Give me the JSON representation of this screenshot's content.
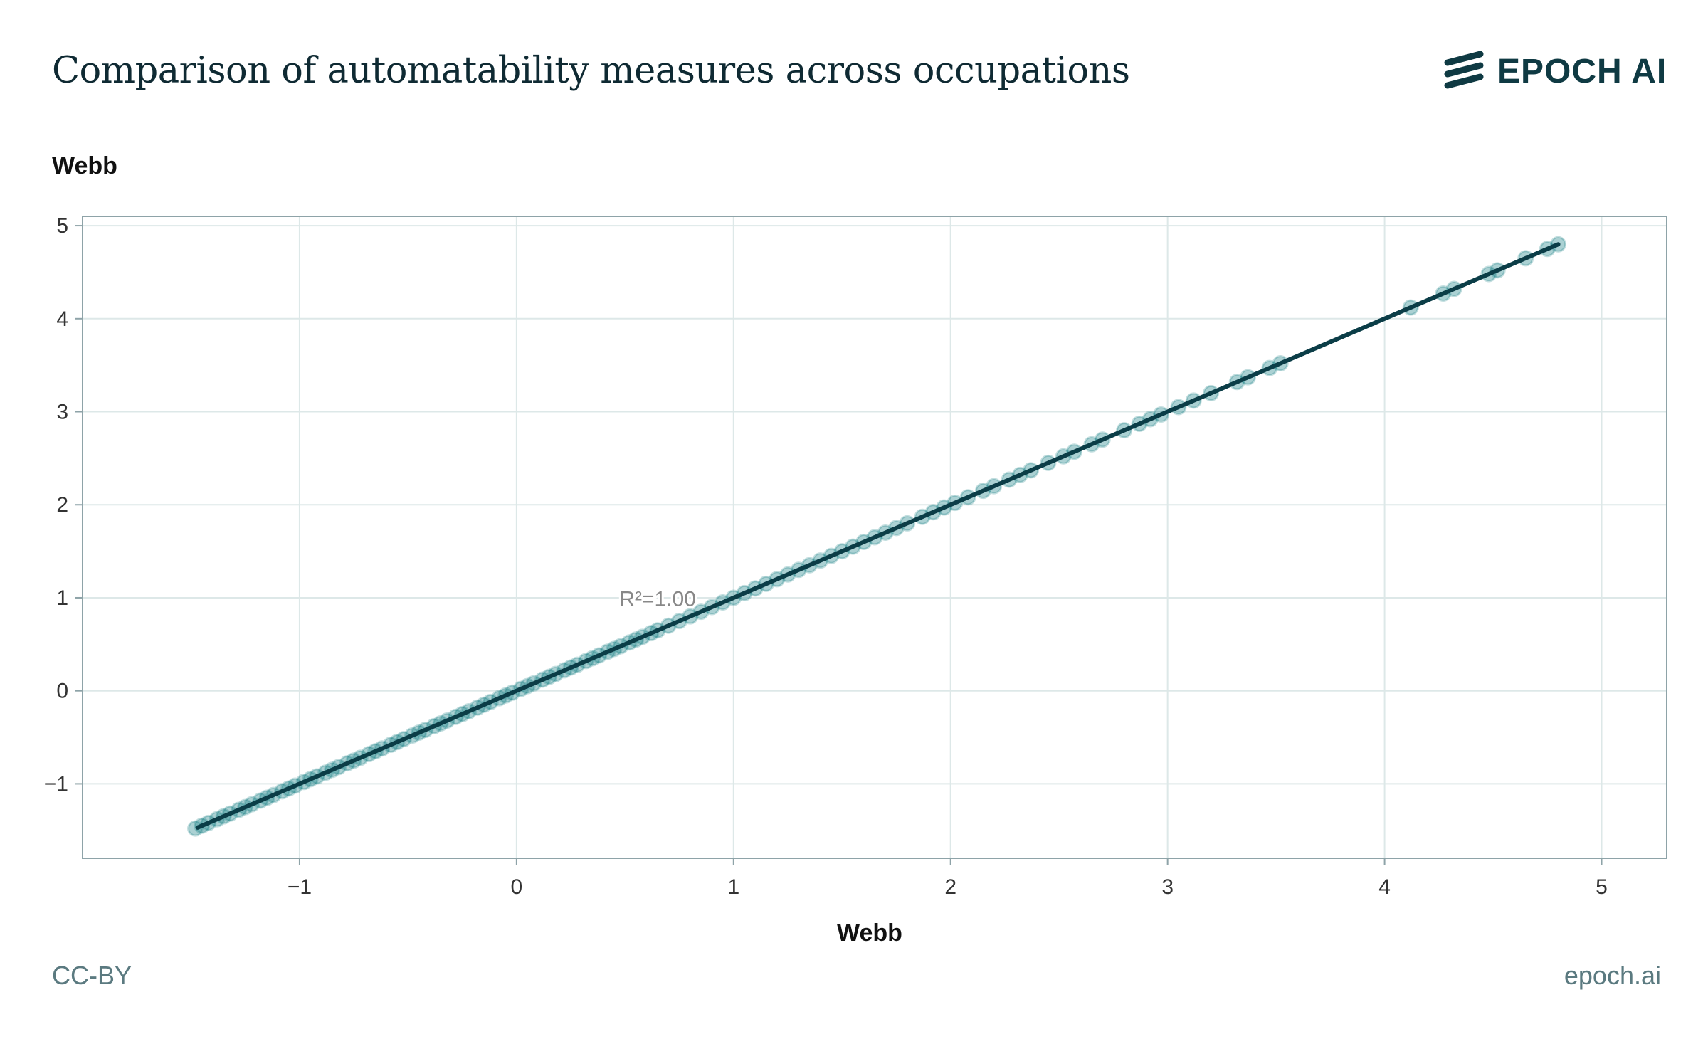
{
  "header": {
    "title": "Comparison of automatability measures across occupations",
    "logo_text": "EPOCH AI"
  },
  "footer": {
    "license": "CC-BY",
    "site": "epoch.ai"
  },
  "colors": {
    "points": "#0f7b80",
    "fit_line": "#0b3d47",
    "grid": "#dde8e8",
    "axis": "#8ea3a8"
  },
  "chart_data": {
    "type": "scatter",
    "xlabel": "Webb",
    "ylabel": "Webb",
    "xlim": [
      -2.0,
      5.3
    ],
    "ylim": [
      -1.8,
      5.1
    ],
    "x_ticks": [
      "−1",
      "0",
      "1",
      "2",
      "3",
      "4",
      "5"
    ],
    "y_ticks": [
      "−1",
      "0",
      "1",
      "2",
      "3",
      "4",
      "5"
    ],
    "x_tick_values": [
      -1,
      0,
      1,
      2,
      3,
      4,
      5
    ],
    "y_tick_values": [
      -1,
      0,
      1,
      2,
      3,
      4,
      5
    ],
    "grid": true,
    "annotation": {
      "text": "R²=1.00",
      "x": 0.5,
      "y": 0.95
    },
    "fit_line": {
      "x": [
        -1.47,
        4.8
      ],
      "y": [
        -1.47,
        4.8
      ]
    },
    "series": [
      {
        "points_x": [
          -1.48,
          -1.45,
          -1.42,
          -1.38,
          -1.35,
          -1.32,
          -1.28,
          -1.25,
          -1.22,
          -1.18,
          -1.15,
          -1.12,
          -1.08,
          -1.05,
          -1.02,
          -0.98,
          -0.95,
          -0.92,
          -0.88,
          -0.85,
          -0.82,
          -0.78,
          -0.75,
          -0.72,
          -0.68,
          -0.65,
          -0.62,
          -0.58,
          -0.55,
          -0.52,
          -0.48,
          -0.45,
          -0.42,
          -0.38,
          -0.35,
          -0.32,
          -0.28,
          -0.25,
          -0.22,
          -0.18,
          -0.15,
          -0.12,
          -0.08,
          -0.05,
          -0.02,
          0.02,
          0.05,
          0.08,
          0.12,
          0.15,
          0.18,
          0.22,
          0.25,
          0.28,
          0.32,
          0.35,
          0.38,
          0.42,
          0.45,
          0.48,
          0.52,
          0.55,
          0.58,
          0.62,
          0.65,
          0.7,
          0.75,
          0.8,
          0.85,
          0.9,
          0.95,
          1.0,
          1.05,
          1.1,
          1.15,
          1.2,
          1.25,
          1.3,
          1.35,
          1.4,
          1.45,
          1.5,
          1.55,
          1.6,
          1.65,
          1.7,
          1.75,
          1.8,
          1.87,
          1.92,
          1.97,
          2.02,
          2.08,
          2.15,
          2.2,
          2.27,
          2.32,
          2.37,
          2.45,
          2.52,
          2.57,
          2.65,
          2.7,
          2.8,
          2.87,
          2.92,
          2.97,
          3.05,
          3.12,
          3.2,
          3.32,
          3.37,
          3.47,
          3.52,
          4.12,
          4.27,
          4.32,
          4.48,
          4.52,
          4.65,
          4.75,
          4.8
        ]
      }
    ]
  }
}
